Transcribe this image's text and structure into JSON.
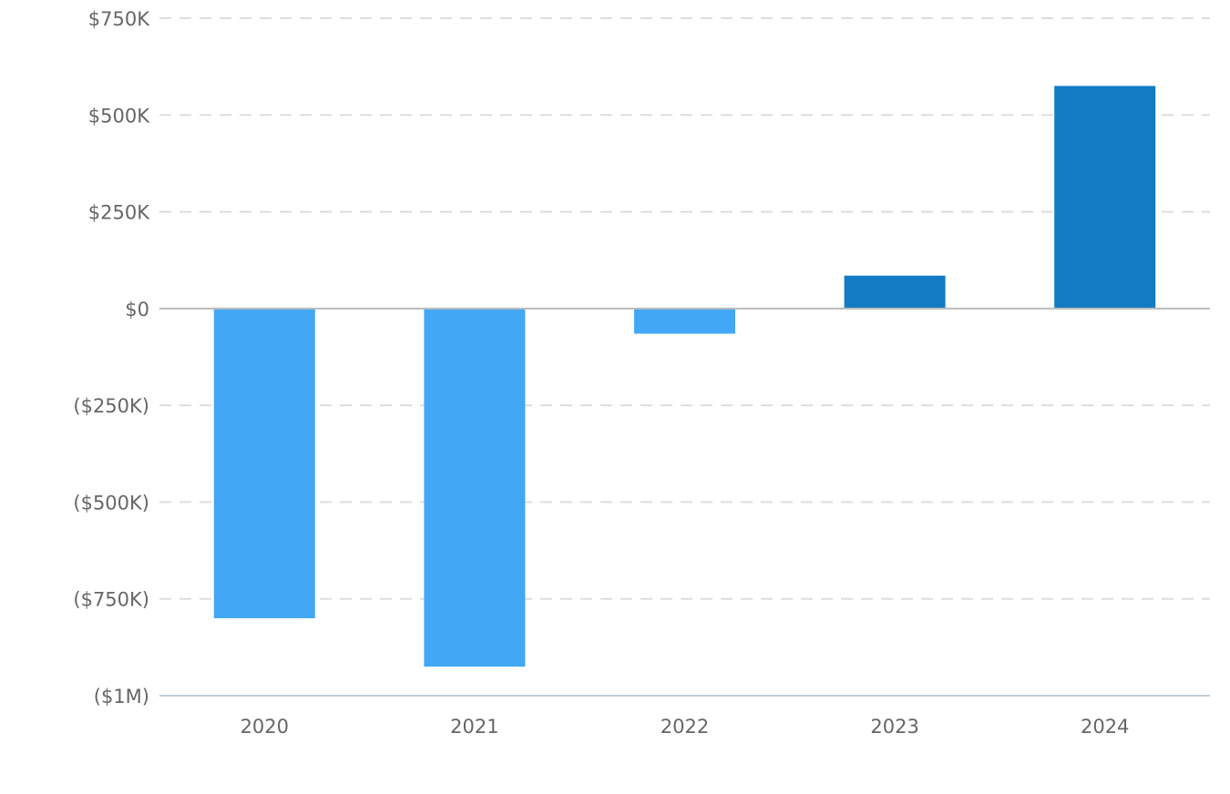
{
  "chart_data": {
    "type": "bar",
    "title": "",
    "xlabel": "",
    "ylabel": "",
    "categories": [
      "2020",
      "2021",
      "2022",
      "2023",
      "2024"
    ],
    "values": [
      -800000,
      -925000,
      -65000,
      85000,
      575000
    ],
    "ylim": [
      -1000000,
      750000
    ],
    "yticks": [
      {
        "value": 750000,
        "label": "$750K"
      },
      {
        "value": 500000,
        "label": "$500K"
      },
      {
        "value": 250000,
        "label": "$250K"
      },
      {
        "value": 0,
        "label": "$0"
      },
      {
        "value": -250000,
        "label": "($250K)"
      },
      {
        "value": -500000,
        "label": "($500K)"
      },
      {
        "value": -750000,
        "label": "($750K)"
      },
      {
        "value": -1000000,
        "label": "($1M)"
      }
    ],
    "grid": true,
    "legend": "none",
    "colors": {
      "negative": "#42a8f5",
      "positive": "#137bc4",
      "gridline": "#dddddd",
      "zero_line": "#bbbbbb",
      "axis_line": "#c3ced8",
      "tick_text": "#666666"
    }
  }
}
